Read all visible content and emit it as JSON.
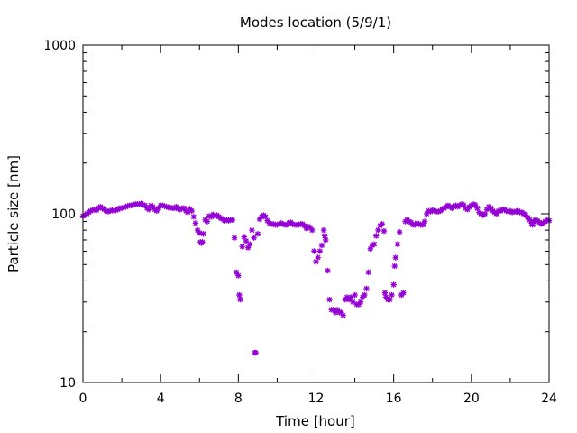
{
  "chart_data": {
    "type": "scatter",
    "title": "Modes location (5/9/1)",
    "xlabel": "Time [hour]",
    "ylabel": "Particle size [nm]",
    "xlim": [
      0,
      24
    ],
    "ylim": [
      10,
      1000
    ],
    "yscale": "log",
    "xticks": [
      0,
      4,
      8,
      12,
      16,
      20,
      24
    ],
    "xtick_labels": [
      "0",
      "4",
      "8",
      "12",
      "16",
      "20",
      "24"
    ],
    "yticks": [
      10,
      100,
      1000
    ],
    "ytick_labels": [
      "10",
      "100",
      "1000"
    ],
    "marker_color": "#9400d3",
    "series": [
      {
        "name": "Modes",
        "points": [
          [
            0.0,
            97
          ],
          [
            0.1,
            98
          ],
          [
            0.2,
            100
          ],
          [
            0.3,
            102
          ],
          [
            0.4,
            104
          ],
          [
            0.5,
            105
          ],
          [
            0.6,
            106
          ],
          [
            0.7,
            105
          ],
          [
            0.8,
            108
          ],
          [
            0.9,
            110
          ],
          [
            1.0,
            108
          ],
          [
            1.1,
            106
          ],
          [
            1.2,
            104
          ],
          [
            1.3,
            103
          ],
          [
            1.4,
            104
          ],
          [
            1.5,
            105
          ],
          [
            1.6,
            104
          ],
          [
            1.7,
            105
          ],
          [
            1.8,
            106
          ],
          [
            1.9,
            108
          ],
          [
            2.0,
            108
          ],
          [
            2.1,
            109
          ],
          [
            2.2,
            110
          ],
          [
            2.3,
            111
          ],
          [
            2.4,
            112
          ],
          [
            2.5,
            112
          ],
          [
            2.6,
            113
          ],
          [
            2.7,
            114
          ],
          [
            2.8,
            114
          ],
          [
            2.9,
            114
          ],
          [
            3.0,
            115
          ],
          [
            3.1,
            113
          ],
          [
            3.2,
            112
          ],
          [
            3.3,
            108
          ],
          [
            3.4,
            106
          ],
          [
            3.5,
            112
          ],
          [
            3.6,
            110
          ],
          [
            3.7,
            106
          ],
          [
            3.8,
            104
          ],
          [
            3.9,
            108
          ],
          [
            4.0,
            112
          ],
          [
            4.1,
            112
          ],
          [
            4.2,
            111
          ],
          [
            4.3,
            110
          ],
          [
            4.4,
            109
          ],
          [
            4.5,
            109
          ],
          [
            4.6,
            108
          ],
          [
            4.7,
            108
          ],
          [
            4.8,
            110
          ],
          [
            4.9,
            107
          ],
          [
            5.0,
            106
          ],
          [
            5.1,
            108
          ],
          [
            5.2,
            108
          ],
          [
            5.3,
            104
          ],
          [
            5.4,
            102
          ],
          [
            5.5,
            107
          ],
          [
            5.6,
            104
          ],
          [
            5.7,
            96
          ],
          [
            5.8,
            88
          ],
          [
            5.9,
            80
          ],
          [
            6.0,
            77
          ],
          [
            6.05,
            68
          ],
          [
            6.1,
            67
          ],
          [
            6.15,
            68
          ],
          [
            6.2,
            76
          ],
          [
            6.3,
            92
          ],
          [
            6.4,
            90
          ],
          [
            6.5,
            97
          ],
          [
            6.6,
            96
          ],
          [
            6.7,
            99
          ],
          [
            6.8,
            97
          ],
          [
            6.9,
            98
          ],
          [
            7.0,
            96
          ],
          [
            7.1,
            94
          ],
          [
            7.2,
            93
          ],
          [
            7.3,
            91
          ],
          [
            7.4,
            92
          ],
          [
            7.5,
            91
          ],
          [
            7.6,
            92
          ],
          [
            7.7,
            92
          ],
          [
            7.8,
            72
          ],
          [
            7.9,
            45
          ],
          [
            8.0,
            43
          ],
          [
            8.05,
            33
          ],
          [
            8.1,
            31
          ],
          [
            8.2,
            64
          ],
          [
            8.3,
            73
          ],
          [
            8.4,
            69
          ],
          [
            8.5,
            63
          ],
          [
            8.6,
            66
          ],
          [
            8.7,
            80
          ],
          [
            8.8,
            72
          ],
          [
            8.85,
            15
          ],
          [
            8.9,
            15
          ],
          [
            9.0,
            76
          ],
          [
            9.1,
            93
          ],
          [
            9.2,
            96
          ],
          [
            9.3,
            98
          ],
          [
            9.4,
            96
          ],
          [
            9.5,
            91
          ],
          [
            9.6,
            88
          ],
          [
            9.7,
            87
          ],
          [
            9.8,
            87
          ],
          [
            9.9,
            86
          ],
          [
            10.0,
            86
          ],
          [
            10.1,
            87
          ],
          [
            10.2,
            88
          ],
          [
            10.3,
            87
          ],
          [
            10.4,
            86
          ],
          [
            10.5,
            86
          ],
          [
            10.6,
            88
          ],
          [
            10.7,
            89
          ],
          [
            10.8,
            87
          ],
          [
            10.9,
            86
          ],
          [
            11.0,
            86
          ],
          [
            11.1,
            86
          ],
          [
            11.2,
            87
          ],
          [
            11.3,
            87
          ],
          [
            11.4,
            85
          ],
          [
            11.5,
            82
          ],
          [
            11.6,
            84
          ],
          [
            11.7,
            83
          ],
          [
            11.8,
            80
          ],
          [
            11.9,
            60
          ],
          [
            12.0,
            52
          ],
          [
            12.1,
            55
          ],
          [
            12.2,
            60
          ],
          [
            12.3,
            65
          ],
          [
            12.4,
            80
          ],
          [
            12.45,
            74
          ],
          [
            12.5,
            70
          ],
          [
            12.6,
            46
          ],
          [
            12.7,
            31
          ],
          [
            12.8,
            27
          ],
          [
            12.9,
            27
          ],
          [
            13.0,
            26
          ],
          [
            13.1,
            27
          ],
          [
            13.2,
            26
          ],
          [
            13.3,
            26
          ],
          [
            13.4,
            25
          ],
          [
            13.5,
            31
          ],
          [
            13.6,
            32
          ],
          [
            13.7,
            31
          ],
          [
            13.8,
            32
          ],
          [
            13.9,
            30
          ],
          [
            14.0,
            33
          ],
          [
            14.1,
            29
          ],
          [
            14.2,
            29
          ],
          [
            14.3,
            30
          ],
          [
            14.4,
            32
          ],
          [
            14.5,
            33
          ],
          [
            14.6,
            36
          ],
          [
            14.7,
            45
          ],
          [
            14.8,
            62
          ],
          [
            14.9,
            65
          ],
          [
            15.0,
            66
          ],
          [
            15.1,
            74
          ],
          [
            15.2,
            80
          ],
          [
            15.3,
            85
          ],
          [
            15.4,
            87
          ],
          [
            15.5,
            79
          ],
          [
            15.55,
            34
          ],
          [
            15.6,
            32
          ],
          [
            15.7,
            31
          ],
          [
            15.8,
            31
          ],
          [
            15.9,
            33
          ],
          [
            16.0,
            38
          ],
          [
            16.05,
            49
          ],
          [
            16.1,
            55
          ],
          [
            16.2,
            66
          ],
          [
            16.3,
            78
          ],
          [
            16.4,
            33
          ],
          [
            16.5,
            34
          ],
          [
            16.6,
            90
          ],
          [
            16.7,
            92
          ],
          [
            16.8,
            90
          ],
          [
            16.9,
            89
          ],
          [
            17.0,
            86
          ],
          [
            17.1,
            86
          ],
          [
            17.2,
            88
          ],
          [
            17.3,
            87
          ],
          [
            17.4,
            86
          ],
          [
            17.5,
            86
          ],
          [
            17.6,
            90
          ],
          [
            17.7,
            100
          ],
          [
            17.8,
            104
          ],
          [
            17.9,
            103
          ],
          [
            18.0,
            105
          ],
          [
            18.1,
            104
          ],
          [
            18.2,
            103
          ],
          [
            18.3,
            103
          ],
          [
            18.4,
            104
          ],
          [
            18.5,
            106
          ],
          [
            18.6,
            108
          ],
          [
            18.7,
            110
          ],
          [
            18.8,
            112
          ],
          [
            18.9,
            110
          ],
          [
            19.0,
            108
          ],
          [
            19.1,
            110
          ],
          [
            19.2,
            112
          ],
          [
            19.3,
            110
          ],
          [
            19.4,
            112
          ],
          [
            19.5,
            114
          ],
          [
            19.6,
            113
          ],
          [
            19.7,
            108
          ],
          [
            19.8,
            106
          ],
          [
            19.9,
            110
          ],
          [
            20.0,
            112
          ],
          [
            20.1,
            114
          ],
          [
            20.2,
            113
          ],
          [
            20.3,
            108
          ],
          [
            20.4,
            102
          ],
          [
            20.5,
            100
          ],
          [
            20.6,
            98
          ],
          [
            20.7,
            100
          ],
          [
            20.8,
            106
          ],
          [
            20.9,
            110
          ],
          [
            21.0,
            108
          ],
          [
            21.1,
            104
          ],
          [
            21.2,
            102
          ],
          [
            21.3,
            100
          ],
          [
            21.4,
            104
          ],
          [
            21.5,
            104
          ],
          [
            21.6,
            106
          ],
          [
            21.7,
            106
          ],
          [
            21.8,
            104
          ],
          [
            21.9,
            103
          ],
          [
            22.0,
            104
          ],
          [
            22.1,
            102
          ],
          [
            22.2,
            103
          ],
          [
            22.3,
            103
          ],
          [
            22.4,
            104
          ],
          [
            22.5,
            102
          ],
          [
            22.6,
            102
          ],
          [
            22.7,
            100
          ],
          [
            22.8,
            98
          ],
          [
            22.9,
            95
          ],
          [
            23.0,
            92
          ],
          [
            23.1,
            88
          ],
          [
            23.15,
            86
          ],
          [
            23.2,
            90
          ],
          [
            23.3,
            92
          ],
          [
            23.4,
            91
          ],
          [
            23.5,
            89
          ],
          [
            23.6,
            87
          ],
          [
            23.7,
            88
          ],
          [
            23.8,
            90
          ],
          [
            23.9,
            92
          ],
          [
            24.0,
            91
          ]
        ]
      }
    ]
  }
}
